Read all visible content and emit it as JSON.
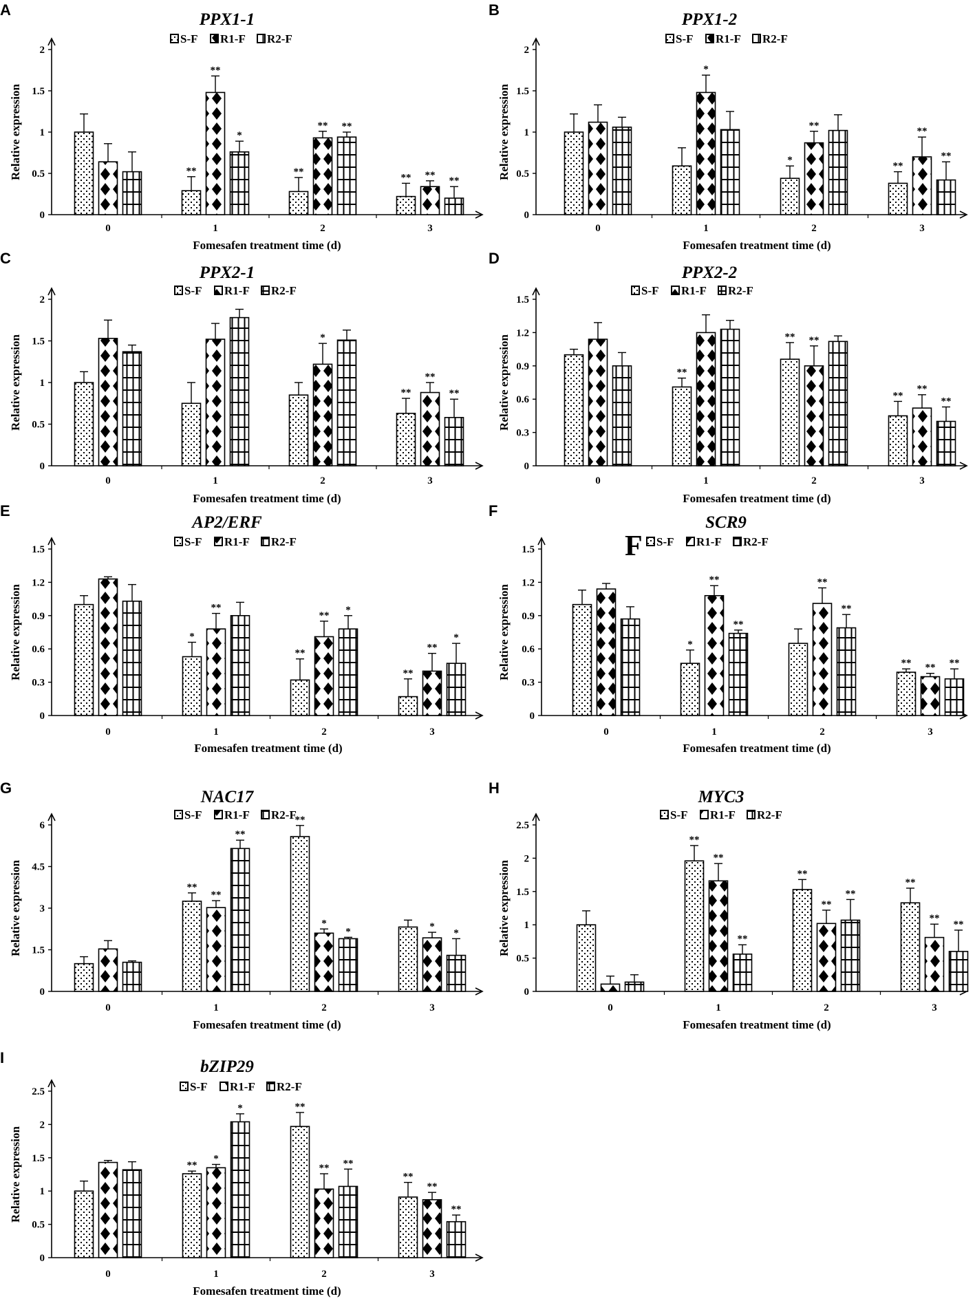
{
  "colors": {
    "ink": "#000000",
    "background": "#ffffff"
  },
  "legend_icons": [
    "dotted-pattern",
    "diamond-pattern",
    "grid-pattern"
  ],
  "chart_data": [
    {
      "panel": "A",
      "type": "bar",
      "title": "PPX1-1",
      "xlabel": "Fomesafen treatment time (d)",
      "ylabel": "Relative expression",
      "categories": [
        "0",
        "1",
        "2",
        "3"
      ],
      "ylim": [
        0,
        2
      ],
      "yticks": [
        "0",
        "0.5",
        "1",
        "1.5",
        "2"
      ],
      "legend": [
        "S-F",
        "R1-F",
        "R2-F"
      ],
      "series": [
        {
          "name": "S-F",
          "values": [
            1.0,
            0.29,
            0.28,
            0.22
          ],
          "errors": [
            0.22,
            0.17,
            0.17,
            0.16
          ],
          "significance": [
            "",
            "**",
            "**",
            "**"
          ]
        },
        {
          "name": "R1-F",
          "values": [
            0.64,
            1.48,
            0.93,
            0.34
          ],
          "errors": [
            0.22,
            0.2,
            0.08,
            0.07
          ],
          "significance": [
            "",
            "**",
            "**",
            "**"
          ]
        },
        {
          "name": "R2-F",
          "values": [
            0.52,
            0.76,
            0.94,
            0.2
          ],
          "errors": [
            0.24,
            0.13,
            0.06,
            0.14
          ],
          "significance": [
            "",
            "*",
            "**",
            "**"
          ]
        }
      ]
    },
    {
      "panel": "B",
      "type": "bar",
      "title": "PPX1-2",
      "xlabel": "Fomesafen treatment time (d)",
      "ylabel": "Relative expression",
      "categories": [
        "0",
        "1",
        "2",
        "3"
      ],
      "ylim": [
        0,
        2
      ],
      "yticks": [
        "0",
        "0.5",
        "1",
        "1.5",
        "2"
      ],
      "legend": [
        "S-F",
        "R1-F",
        "R2-F"
      ],
      "series": [
        {
          "name": "S-F",
          "values": [
            1.0,
            0.59,
            0.44,
            0.38
          ],
          "errors": [
            0.22,
            0.22,
            0.15,
            0.14
          ],
          "significance": [
            "",
            "",
            "*",
            "**"
          ]
        },
        {
          "name": "R1-F",
          "values": [
            1.12,
            1.48,
            0.87,
            0.7
          ],
          "errors": [
            0.21,
            0.21,
            0.14,
            0.24
          ],
          "significance": [
            "",
            "*",
            "**",
            "**"
          ]
        },
        {
          "name": "R2-F",
          "values": [
            1.06,
            1.03,
            1.02,
            0.42
          ],
          "errors": [
            0.12,
            0.22,
            0.19,
            0.22
          ],
          "significance": [
            "",
            "",
            "",
            "**"
          ]
        }
      ]
    },
    {
      "panel": "C",
      "type": "bar",
      "title": "PPX2-1",
      "xlabel": "Fomesafen treatment time (d)",
      "ylabel": "Relative expression",
      "categories": [
        "0",
        "1",
        "2",
        "3"
      ],
      "ylim": [
        0,
        2
      ],
      "yticks": [
        "0",
        "0.5",
        "1",
        "1.5",
        "2"
      ],
      "legend": [
        "S-F",
        "R1-F",
        "R2-F"
      ],
      "series": [
        {
          "name": "S-F",
          "values": [
            1.0,
            0.75,
            0.85,
            0.63
          ],
          "errors": [
            0.13,
            0.25,
            0.15,
            0.18
          ],
          "significance": [
            "",
            "",
            "",
            "**"
          ]
        },
        {
          "name": "R1-F",
          "values": [
            1.53,
            1.52,
            1.22,
            0.88
          ],
          "errors": [
            0.22,
            0.19,
            0.25,
            0.12
          ],
          "significance": [
            "",
            "",
            "*",
            "**"
          ]
        },
        {
          "name": "R2-F",
          "values": [
            1.37,
            1.78,
            1.51,
            0.58
          ],
          "errors": [
            0.08,
            0.1,
            0.12,
            0.22
          ],
          "significance": [
            "",
            "",
            "",
            "**"
          ]
        }
      ]
    },
    {
      "panel": "D",
      "type": "bar",
      "title": "PPX2-2",
      "xlabel": "Fomesafen treatment time (d)",
      "ylabel": "Relative expression",
      "categories": [
        "0",
        "1",
        "2",
        "3"
      ],
      "ylim": [
        0,
        1.5
      ],
      "yticks": [
        "0",
        "0.3",
        "0.6",
        "0.9",
        "1.2",
        "1.5"
      ],
      "legend": [
        "S-F",
        "R1-F",
        "R2-F"
      ],
      "series": [
        {
          "name": "S-F",
          "values": [
            1.0,
            0.71,
            0.96,
            0.45
          ],
          "errors": [
            0.05,
            0.08,
            0.15,
            0.13
          ],
          "significance": [
            "",
            "**",
            "**",
            "**"
          ]
        },
        {
          "name": "R1-F",
          "values": [
            1.14,
            1.2,
            0.9,
            0.52
          ],
          "errors": [
            0.15,
            0.16,
            0.18,
            0.12
          ],
          "significance": [
            "",
            "",
            "**",
            "**"
          ]
        },
        {
          "name": "R2-F",
          "values": [
            0.9,
            1.23,
            1.12,
            0.4
          ],
          "errors": [
            0.12,
            0.08,
            0.05,
            0.13
          ],
          "significance": [
            "",
            "",
            "",
            "**"
          ]
        }
      ]
    },
    {
      "panel": "E",
      "type": "bar",
      "title": "AP2/ERF",
      "xlabel": "Fomesafen treatment time (d)",
      "ylabel": "Relative expression",
      "categories": [
        "0",
        "1",
        "2",
        "3"
      ],
      "ylim": [
        0,
        1.5
      ],
      "yticks": [
        "0",
        "0.3",
        "0.6",
        "0.9",
        "1.2",
        "1.5"
      ],
      "legend": [
        "S-F",
        "R1-F",
        "R2-F"
      ],
      "series": [
        {
          "name": "S-F",
          "values": [
            1.0,
            0.53,
            0.32,
            0.17
          ],
          "errors": [
            0.08,
            0.13,
            0.19,
            0.16
          ],
          "significance": [
            "",
            "*",
            "**",
            "**"
          ]
        },
        {
          "name": "R1-F",
          "values": [
            1.23,
            0.78,
            0.71,
            0.4
          ],
          "errors": [
            0.02,
            0.14,
            0.14,
            0.16
          ],
          "significance": [
            "",
            "**",
            "**",
            "**"
          ]
        },
        {
          "name": "R2-F",
          "values": [
            1.03,
            0.9,
            0.78,
            0.47
          ],
          "errors": [
            0.15,
            0.12,
            0.12,
            0.18
          ],
          "significance": [
            "",
            "",
            "*",
            "*"
          ]
        }
      ]
    },
    {
      "panel": "F",
      "type": "bar",
      "title": "SCR9",
      "xlabel": "Fomesafen treatment time (d)",
      "ylabel": "Relative expression",
      "categories": [
        "0",
        "1",
        "2",
        "3"
      ],
      "ylim": [
        0,
        1.5
      ],
      "yticks": [
        "0",
        "0.3",
        "0.6",
        "0.9",
        "1.2",
        "1.5"
      ],
      "legend": [
        "S-F",
        "R1-F",
        "R2-F"
      ],
      "extra_label": "F",
      "series": [
        {
          "name": "S-F",
          "values": [
            1.0,
            0.47,
            0.65,
            0.39
          ],
          "errors": [
            0.13,
            0.12,
            0.13,
            0.03
          ],
          "significance": [
            "",
            "*",
            "",
            "**"
          ]
        },
        {
          "name": "R1-F",
          "values": [
            1.14,
            1.08,
            1.01,
            0.35
          ],
          "errors": [
            0.05,
            0.09,
            0.14,
            0.03
          ],
          "significance": [
            "",
            "**",
            "**",
            "**"
          ]
        },
        {
          "name": "R2-F",
          "values": [
            0.87,
            0.74,
            0.79,
            0.33
          ],
          "errors": [
            0.11,
            0.03,
            0.12,
            0.09
          ],
          "significance": [
            "",
            "**",
            "**",
            "**"
          ]
        }
      ]
    },
    {
      "panel": "G",
      "type": "bar",
      "title": "NAC17",
      "xlabel": "Fomesafen treatment time (d)",
      "ylabel": "Relative expression",
      "categories": [
        "0",
        "1",
        "2",
        "3"
      ],
      "ylim": [
        0,
        6
      ],
      "yticks": [
        "0",
        "1.5",
        "3",
        "4.5",
        "6"
      ],
      "legend": [
        "S-F",
        "R1-F",
        "R2-F"
      ],
      "series": [
        {
          "name": "S-F",
          "values": [
            1.0,
            3.25,
            5.58,
            2.32
          ],
          "errors": [
            0.25,
            0.3,
            0.4,
            0.25
          ],
          "significance": [
            "",
            "**",
            "**",
            ""
          ]
        },
        {
          "name": "R1-F",
          "values": [
            1.53,
            3.02,
            2.1,
            1.93
          ],
          "errors": [
            0.3,
            0.25,
            0.15,
            0.2
          ],
          "significance": [
            "",
            "**",
            "*",
            "*"
          ]
        },
        {
          "name": "R2-F",
          "values": [
            1.05,
            5.15,
            1.9,
            1.3
          ],
          "errors": [
            0.05,
            0.3,
            0.05,
            0.6
          ],
          "significance": [
            "",
            "**",
            "*",
            "*"
          ]
        }
      ]
    },
    {
      "panel": "H",
      "type": "bar",
      "title": "MYC3",
      "xlabel": "Fomesafen treatment time (d)",
      "ylabel": "Relative expression",
      "categories": [
        "0",
        "1",
        "2",
        "3"
      ],
      "ylim": [
        0,
        2.5
      ],
      "yticks": [
        "0",
        "0.5",
        "1",
        "1.5",
        "2",
        "2.5"
      ],
      "legend": [
        "S-F",
        "R1-F",
        "R2-F"
      ],
      "series": [
        {
          "name": "S-F",
          "values": [
            1.0,
            1.96,
            1.53,
            1.33
          ],
          "errors": [
            0.21,
            0.23,
            0.15,
            0.22
          ],
          "significance": [
            "",
            "**",
            "**",
            "**"
          ]
        },
        {
          "name": "R1-F",
          "values": [
            0.11,
            1.66,
            1.02,
            0.81
          ],
          "errors": [
            0.12,
            0.26,
            0.2,
            0.2
          ],
          "significance": [
            "",
            "**",
            "**",
            "**"
          ]
        },
        {
          "name": "R2-F",
          "values": [
            0.14,
            0.56,
            1.07,
            0.6
          ],
          "errors": [
            0.11,
            0.14,
            0.31,
            0.32
          ],
          "significance": [
            "",
            "**",
            "**",
            "**"
          ]
        }
      ]
    },
    {
      "panel": "I",
      "type": "bar",
      "title": "bZIP29",
      "xlabel": "Fomesafen treatment time (d)",
      "ylabel": "Relative expression",
      "categories": [
        "0",
        "1",
        "2",
        "3"
      ],
      "ylim": [
        0,
        2.5
      ],
      "yticks": [
        "0",
        "0.5",
        "1",
        "1.5",
        "2",
        "2.5"
      ],
      "legend": [
        "S-F",
        "R1-F",
        "R2-F"
      ],
      "series": [
        {
          "name": "S-F",
          "values": [
            1.0,
            1.26,
            1.97,
            0.91
          ],
          "errors": [
            0.15,
            0.04,
            0.21,
            0.22
          ],
          "significance": [
            "",
            "**",
            "**",
            "**"
          ]
        },
        {
          "name": "R1-F",
          "values": [
            1.43,
            1.35,
            1.03,
            0.87
          ],
          "errors": [
            0.03,
            0.05,
            0.23,
            0.11
          ],
          "significance": [
            "",
            "*",
            "**",
            "**"
          ]
        },
        {
          "name": "R2-F",
          "values": [
            1.32,
            2.04,
            1.07,
            0.54
          ],
          "errors": [
            0.12,
            0.12,
            0.26,
            0.1
          ],
          "significance": [
            "",
            "*",
            "**",
            "**"
          ]
        }
      ]
    }
  ]
}
